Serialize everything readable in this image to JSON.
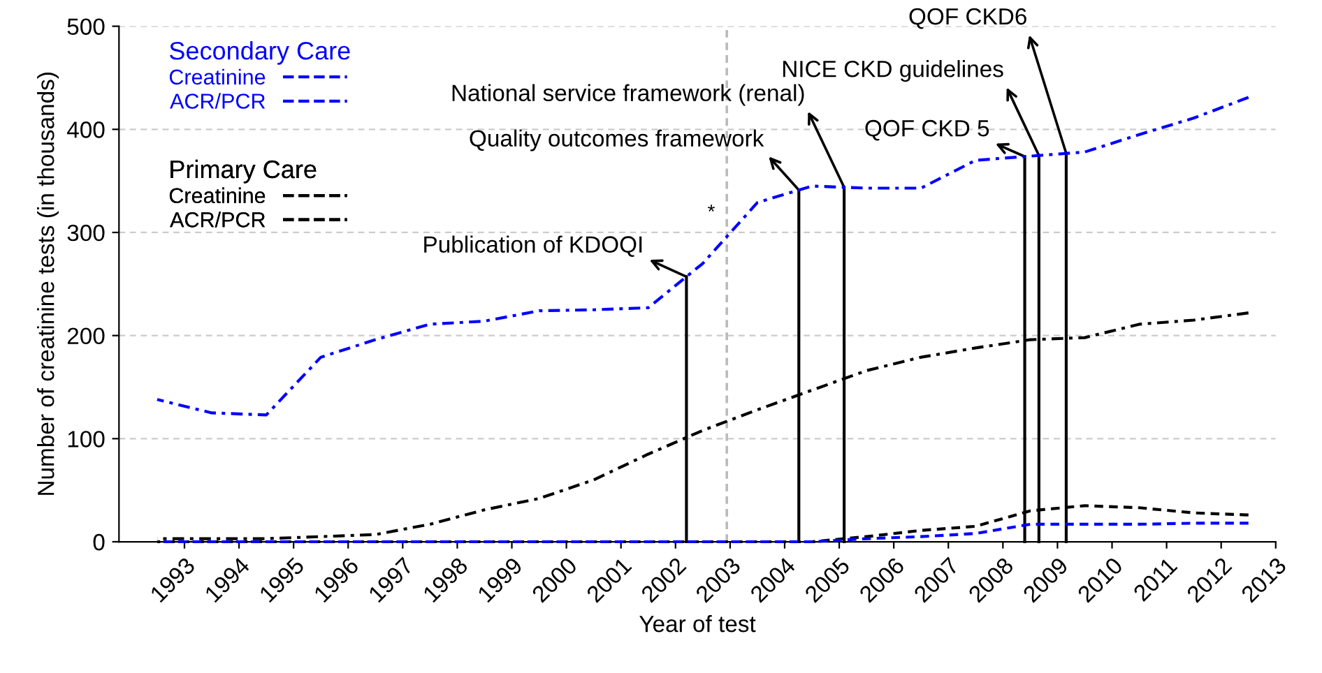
{
  "chart_data": {
    "type": "line",
    "xlabel": "Year of test",
    "ylabel": "Number of creatinine tests (in thousands)",
    "x": [
      1992.5,
      1993.5,
      1994.5,
      1995.5,
      1996.5,
      1997.5,
      1998.5,
      1999.5,
      2000.5,
      2001.5,
      2002.5,
      2003.5,
      2004.5,
      2005.5,
      2006.5,
      2007.5,
      2008.5,
      2009.5,
      2010.5,
      2011.5,
      2012.5
    ],
    "series": [
      {
        "name": "Creatinine",
        "color": "#0000ff",
        "line_style": "dashdot",
        "values": [
          138,
          125,
          123,
          179,
          196,
          211,
          214,
          224,
          225,
          227,
          270,
          329,
          345,
          343,
          343,
          370,
          374,
          378,
          395,
          411,
          431
        ]
      },
      {
        "name": "ACR/PCR",
        "color": "#0000ff",
        "line_style": "dashed",
        "values": [
          0,
          0,
          0,
          0,
          0,
          0,
          0,
          0,
          0,
          0,
          0,
          0,
          0,
          3,
          5,
          8,
          17,
          17,
          17,
          18,
          18
        ]
      },
      {
        "name": "Creatinine",
        "color": "#000000",
        "line_style": "dashdot",
        "values": [
          3,
          3,
          3,
          5,
          7,
          17,
          31,
          42,
          60,
          85,
          108,
          128,
          147,
          166,
          179,
          188,
          196,
          198,
          211,
          215,
          222
        ]
      },
      {
        "name": "ACR/PCR",
        "color": "#000000",
        "line_style": "dashed",
        "values": [
          0,
          0,
          0,
          0,
          0,
          0,
          0,
          0,
          0,
          0,
          0,
          0,
          0,
          5,
          11,
          15,
          30,
          35,
          33,
          28,
          26
        ]
      }
    ],
    "legend": "top left",
    "legend_title": [
      "Secondary Care",
      "Primary Care"
    ],
    "xlim": [
      1991.8,
      2013
    ],
    "xticks": [
      1993,
      1994,
      1995,
      1996,
      1997,
      1998,
      1999,
      2000,
      2001,
      2002,
      2003,
      2004,
      2005,
      2006,
      2007,
      2008,
      2009,
      2010,
      2011,
      2012,
      2013
    ],
    "ylim": [
      0,
      500
    ],
    "yticks": [
      0,
      100,
      200,
      300,
      400,
      500
    ],
    "grid": "y",
    "ref_lines": [
      {
        "axis": "x",
        "value": 2002.94,
        "label": "*",
        "color": "#bbbbbb",
        "line_style": "dashed"
      },
      {
        "axis": "x",
        "value": 2002.2,
        "label": "Publication of KDOQI",
        "color": "#000000",
        "line_style": "solid"
      },
      {
        "axis": "x",
        "value": 2004.26,
        "label": "Quality outcomes framework",
        "color": "#000000",
        "line_style": "solid"
      },
      {
        "axis": "x",
        "value": 2005.09,
        "label": "National service framework (renal)",
        "color": "#000000",
        "line_style": "solid"
      },
      {
        "axis": "x",
        "value": 2008.4,
        "label": "QOF CKD 5",
        "color": "#000000",
        "line_style": "solid"
      },
      {
        "axis": "x",
        "value": 2008.66,
        "label": "NICE CKD guidelines",
        "color": "#000000",
        "line_style": "solid"
      },
      {
        "axis": "x",
        "value": 2009.16,
        "label": "QOF CKD6",
        "color": "#000000",
        "line_style": "solid"
      }
    ]
  }
}
